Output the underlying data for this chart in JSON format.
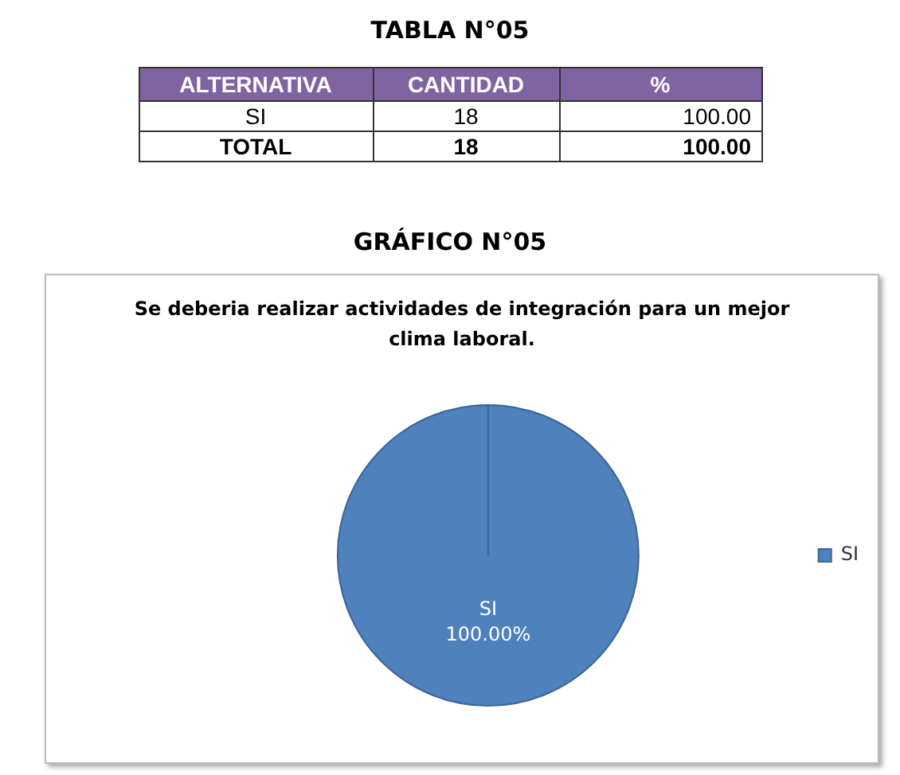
{
  "chart_data": [
    {
      "type": "other",
      "title": "TABLA N°05",
      "annotations": [
        "ALTERNATIVA",
        "CANTIDAD",
        "%",
        "SI",
        "18",
        "100.00",
        "TOTAL",
        "18",
        "100.00"
      ]
    },
    {
      "type": "pie",
      "title": "GRÁFICO N°05",
      "subtitle": "Se deberia realizar actividades de integración para un mejor clima laboral.",
      "categories": [
        "SI"
      ],
      "values": [
        100
      ],
      "colors": [
        "#4f81bd"
      ],
      "value_labels": [
        "100.00%"
      ],
      "legend": "right"
    }
  ]
}
